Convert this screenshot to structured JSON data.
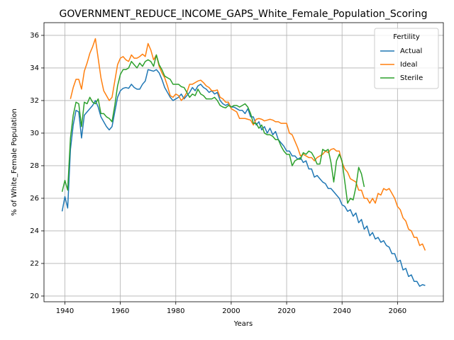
{
  "chart_data": {
    "type": "line",
    "title": "GOVERNMENT_REDUCE_INCOME_GAPS_White_Female_Population_Scoring",
    "xlabel": "Years",
    "ylabel": "% of White_Female Population",
    "legend_title": "Fertility",
    "legend": "upper right",
    "grid": true,
    "x": [
      1939,
      1940,
      1941,
      1942,
      1943,
      1944,
      1945,
      1946,
      1947,
      1948,
      1949,
      1950,
      1951,
      1952,
      1953,
      1954,
      1955,
      1956,
      1957,
      1958,
      1959,
      1960,
      1961,
      1962,
      1963,
      1964,
      1965,
      1966,
      1967,
      1968,
      1969,
      1970,
      1971,
      1972,
      1973,
      1974,
      1975,
      1976,
      1977,
      1978,
      1979,
      1980,
      1981,
      1982,
      1983,
      1984,
      1985,
      1986,
      1987,
      1988,
      1989,
      1990,
      1991,
      1992,
      1993,
      1994,
      1995,
      1996,
      1997,
      1998,
      1999,
      2000,
      2001,
      2002,
      2003,
      2004,
      2005,
      2006,
      2007,
      2008,
      2009,
      2010,
      2011,
      2012,
      2013,
      2014,
      2015,
      2016,
      2017,
      2018,
      2019,
      2020,
      2021,
      2022,
      2023,
      2024,
      2025,
      2026,
      2027,
      2028,
      2029,
      2030,
      2031,
      2032,
      2033,
      2034,
      2035,
      2036,
      2037,
      2038,
      2039,
      2040,
      2041,
      2042,
      2043,
      2044,
      2045,
      2046,
      2047,
      2048,
      2049,
      2050,
      2051,
      2052,
      2053,
      2054,
      2055,
      2056,
      2057,
      2058,
      2059,
      2060,
      2061,
      2062,
      2063,
      2064,
      2065,
      2066,
      2067,
      2068,
      2069,
      2070
    ],
    "series": [
      {
        "name": "Actual",
        "color": "#1f77b4",
        "values": [
          25.2,
          26.1,
          25.4,
          29.0,
          30.5,
          31.4,
          31.3,
          29.7,
          31.1,
          31.3,
          31.5,
          31.7,
          32.0,
          31.6,
          31.0,
          30.7,
          30.4,
          30.2,
          30.4,
          31.3,
          32.2,
          32.6,
          32.75,
          32.8,
          32.75,
          33.0,
          32.8,
          32.7,
          32.7,
          33.0,
          33.2,
          33.9,
          33.85,
          33.8,
          33.9,
          33.7,
          33.3,
          32.8,
          32.5,
          32.2,
          32.0,
          32.1,
          32.2,
          32.4,
          32.1,
          32.3,
          32.5,
          32.8,
          32.6,
          32.9,
          33.0,
          32.8,
          32.7,
          32.5,
          32.6,
          32.4,
          32.5,
          32.0,
          31.8,
          31.7,
          31.8,
          31.6,
          31.6,
          31.5,
          31.4,
          31.4,
          31.2,
          31.5,
          31.0,
          31.0,
          30.5,
          30.7,
          30.2,
          30.4,
          30.0,
          30.3,
          29.9,
          30.1,
          29.6,
          29.4,
          29.2,
          28.9,
          28.9,
          28.6,
          28.6,
          28.4,
          28.5,
          28.2,
          28.3,
          27.8,
          27.8,
          27.3,
          27.4,
          27.2,
          27.0,
          26.9,
          26.6,
          26.6,
          26.4,
          26.2,
          26.0,
          25.6,
          25.5,
          25.2,
          25.3,
          24.9,
          25.1,
          24.5,
          24.7,
          24.1,
          24.3,
          23.7,
          23.9,
          23.5,
          23.6,
          23.3,
          23.4,
          23.1,
          23.0,
          22.6,
          22.6,
          22.1,
          22.2,
          21.6,
          21.7,
          21.2,
          21.3,
          20.9,
          20.9,
          20.6,
          20.7,
          20.65
        ]
      },
      {
        "name": "Ideal",
        "color": "#ff7f0e",
        "values": [
          null,
          null,
          null,
          32.1,
          32.8,
          33.3,
          33.3,
          32.7,
          33.8,
          34.3,
          34.9,
          35.3,
          35.8,
          34.6,
          33.4,
          32.6,
          32.3,
          32.0,
          32.2,
          33.2,
          34.2,
          34.6,
          34.7,
          34.5,
          34.4,
          34.8,
          34.6,
          34.6,
          34.7,
          34.85,
          34.7,
          35.5,
          35.1,
          34.5,
          34.8,
          34.1,
          33.7,
          33.4,
          32.9,
          32.3,
          32.2,
          32.4,
          32.3,
          32.0,
          32.2,
          32.5,
          33.0,
          33.0,
          33.1,
          33.2,
          33.25,
          33.1,
          32.9,
          32.8,
          32.6,
          32.6,
          32.65,
          32.2,
          32.1,
          31.9,
          31.9,
          31.5,
          31.4,
          31.3,
          30.9,
          30.9,
          30.9,
          30.85,
          30.8,
          30.5,
          30.85,
          30.9,
          30.85,
          30.75,
          30.8,
          30.85,
          30.8,
          30.7,
          30.7,
          30.6,
          30.6,
          30.6,
          30.0,
          29.9,
          29.5,
          29.1,
          28.6,
          28.7,
          28.6,
          28.5,
          28.5,
          28.3,
          28.5,
          28.6,
          28.7,
          28.9,
          28.8,
          29.0,
          29.05,
          28.9,
          28.9,
          28.2,
          27.8,
          27.6,
          27.2,
          27.1,
          27.0,
          26.5,
          26.5,
          26.0,
          26.0,
          25.7,
          26.0,
          25.7,
          26.3,
          26.2,
          26.6,
          26.5,
          26.6,
          26.3,
          26.0,
          25.5,
          25.3,
          24.8,
          24.6,
          24.1,
          24.0,
          23.6,
          23.6,
          23.1,
          23.2,
          22.8
        ]
      },
      {
        "name": "Sterile",
        "color": "#2ca02c",
        "values": [
          26.4,
          27.1,
          26.5,
          29.7,
          31.1,
          31.9,
          31.8,
          30.4,
          31.9,
          31.8,
          32.2,
          31.9,
          31.8,
          32.1,
          31.2,
          31.2,
          31.0,
          30.9,
          30.7,
          31.7,
          32.9,
          33.6,
          33.9,
          33.9,
          34.0,
          34.4,
          34.2,
          34.0,
          34.3,
          34.1,
          34.4,
          34.5,
          34.4,
          34.1,
          34.8,
          34.2,
          33.9,
          33.5,
          33.4,
          33.3,
          33.0,
          33.0,
          33.0,
          32.85,
          32.8,
          32.5,
          32.2,
          32.4,
          32.3,
          32.7,
          32.4,
          32.3,
          32.1,
          32.1,
          32.1,
          32.2,
          32.0,
          31.7,
          31.6,
          31.55,
          31.7,
          31.6,
          31.7,
          31.7,
          31.6,
          31.7,
          31.8,
          31.6,
          31.2,
          30.6,
          30.6,
          30.3,
          30.5,
          30.0,
          29.9,
          29.9,
          29.8,
          29.6,
          29.6,
          29.2,
          28.9,
          28.7,
          28.7,
          28.0,
          28.3,
          28.4,
          28.4,
          28.8,
          28.7,
          28.9,
          28.8,
          28.5,
          28.1,
          28.1,
          29.0,
          28.9,
          29.0,
          28.2,
          27.0,
          28.3,
          28.7,
          28.3,
          27.0,
          25.7,
          26.0,
          25.9,
          26.7,
          27.9,
          27.5,
          26.7,
          null,
          null,
          null,
          null,
          null,
          null,
          null,
          null,
          null,
          null,
          null,
          null,
          null,
          null,
          null,
          null,
          null,
          null,
          null,
          null,
          null,
          null
        ]
      }
    ],
    "xlim": [
      1932.45,
      2076.55
    ],
    "xticks": [
      1940,
      1960,
      1980,
      2000,
      2020,
      2040,
      2060
    ],
    "ylim": [
      19.65,
      36.78
    ],
    "yticks": [
      20,
      22,
      24,
      26,
      28,
      30,
      32,
      34,
      36
    ]
  }
}
